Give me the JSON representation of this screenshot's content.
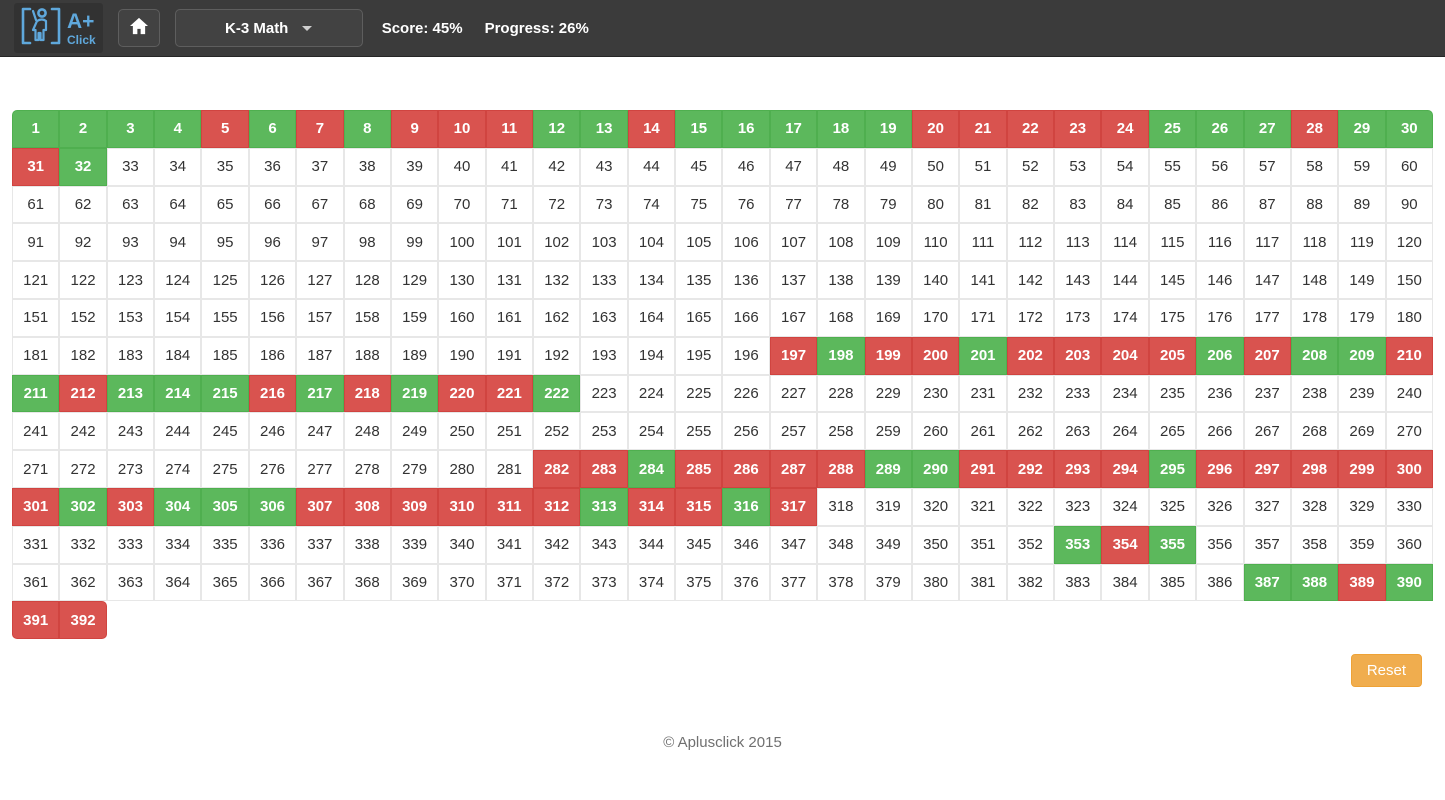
{
  "header": {
    "logo": {
      "text_top": "A+",
      "text_bottom": "Click"
    },
    "category_dropdown": {
      "label": "K-3 Math"
    },
    "score_label": "Score: 45%",
    "progress_label": "Progress: 26%"
  },
  "colors": {
    "header_bg": "#3b3b3b",
    "logo_accent": "#5fa8dc",
    "correct": "#5cb85c",
    "wrong": "#d9534f",
    "reset_button": "#f0ad4e"
  },
  "grid": {
    "columns": 30,
    "start": 1,
    "total": 392,
    "correct": [
      1,
      2,
      3,
      4,
      6,
      8,
      12,
      13,
      15,
      16,
      17,
      18,
      19,
      25,
      26,
      27,
      29,
      30,
      32,
      198,
      201,
      206,
      208,
      209,
      211,
      213,
      214,
      215,
      217,
      219,
      222,
      284,
      289,
      290,
      295,
      302,
      304,
      305,
      306,
      313,
      316,
      353,
      355,
      387,
      388,
      390
    ],
    "wrong": [
      5,
      7,
      9,
      10,
      11,
      14,
      20,
      21,
      22,
      23,
      24,
      28,
      31,
      197,
      199,
      200,
      202,
      203,
      204,
      205,
      207,
      210,
      212,
      216,
      218,
      220,
      221,
      282,
      283,
      285,
      286,
      287,
      288,
      291,
      292,
      293,
      294,
      296,
      297,
      298,
      299,
      300,
      301,
      303,
      307,
      308,
      309,
      310,
      311,
      312,
      314,
      315,
      317,
      354,
      389,
      391,
      392
    ]
  },
  "reset_label": "Reset",
  "footer_text": "© Aplusclick 2015"
}
